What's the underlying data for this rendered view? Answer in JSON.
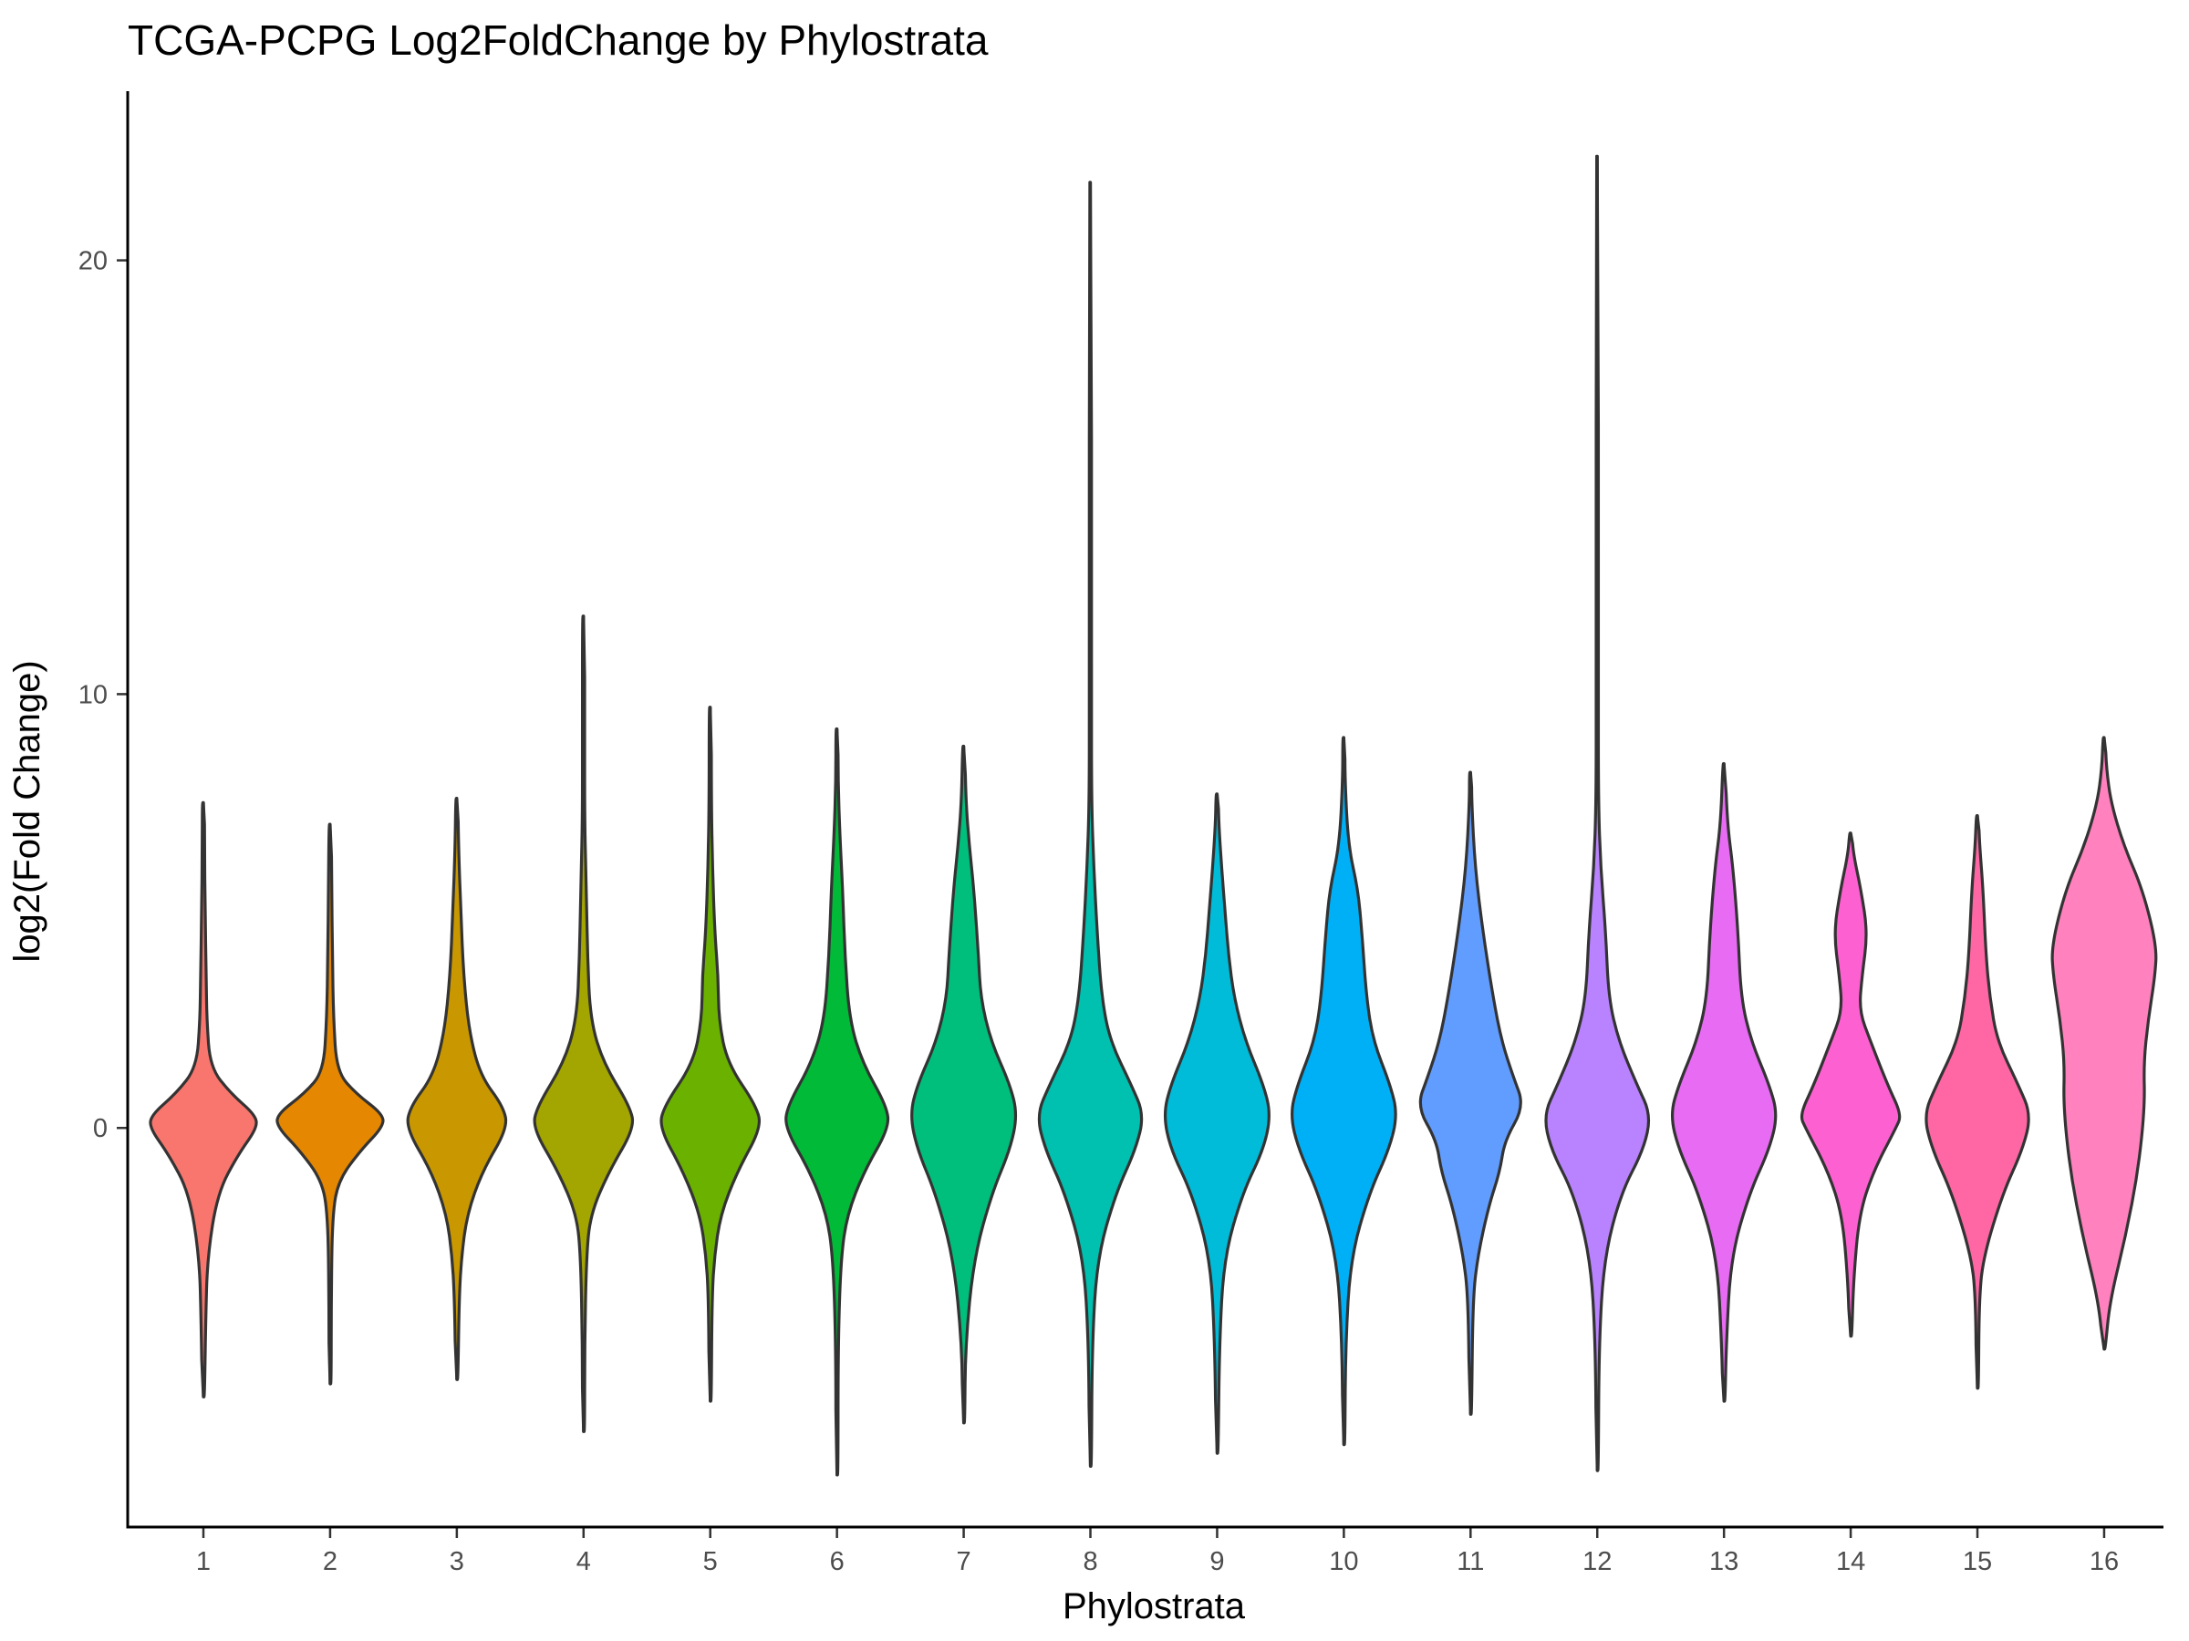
{
  "chart_data": {
    "type": "violin",
    "title": "TCGA-PCPG Log2FoldChange by Phylostrata",
    "xlabel": "Phylostrata",
    "ylabel": "log2(Fold Change)",
    "categories": [
      "1",
      "2",
      "3",
      "4",
      "5",
      "6",
      "7",
      "8",
      "9",
      "10",
      "11",
      "12",
      "13",
      "14",
      "15",
      "16"
    ],
    "yticks": [
      0,
      10,
      20
    ],
    "ylim": [
      -9.2,
      23.9
    ],
    "grid": false,
    "legend": "none",
    "series": [
      {
        "category": "1",
        "color": "#F8766D",
        "min": -6.2,
        "max": 7.5,
        "profile": [
          [
            -6.2,
            0.02
          ],
          [
            -4.5,
            0.04
          ],
          [
            -3,
            0.07
          ],
          [
            -1.5,
            0.25
          ],
          [
            -0.6,
            0.62
          ],
          [
            0,
            0.95
          ],
          [
            0.3,
            0.92
          ],
          [
            0.8,
            0.48
          ],
          [
            1.4,
            0.12
          ],
          [
            2.5,
            0.06
          ],
          [
            3.5,
            0.05
          ],
          [
            5,
            0.03
          ],
          [
            6.5,
            0.02
          ],
          [
            7.5,
            0.01
          ]
        ]
      },
      {
        "category": "2",
        "color": "#E58700",
        "min": -5.9,
        "max": 7.0,
        "profile": [
          [
            -5.9,
            0.01
          ],
          [
            -4,
            0.02
          ],
          [
            -2,
            0.04
          ],
          [
            -1.2,
            0.15
          ],
          [
            -0.5,
            0.55
          ],
          [
            0,
            0.92
          ],
          [
            0.3,
            0.95
          ],
          [
            0.8,
            0.45
          ],
          [
            1.3,
            0.12
          ],
          [
            2.5,
            0.06
          ],
          [
            4,
            0.04
          ],
          [
            5.5,
            0.03
          ],
          [
            7,
            0.01
          ]
        ]
      },
      {
        "category": "3",
        "color": "#C99800",
        "min": -5.8,
        "max": 7.6,
        "profile": [
          [
            -5.8,
            0.02
          ],
          [
            -4,
            0.04
          ],
          [
            -3,
            0.08
          ],
          [
            -2,
            0.18
          ],
          [
            -1,
            0.45
          ],
          [
            0,
            0.9
          ],
          [
            0.5,
            0.82
          ],
          [
            1.2,
            0.42
          ],
          [
            2.2,
            0.22
          ],
          [
            3.5,
            0.12
          ],
          [
            5,
            0.07
          ],
          [
            6.5,
            0.03
          ],
          [
            7.6,
            0.01
          ]
        ]
      },
      {
        "category": "4",
        "color": "#A3A500",
        "min": -7.0,
        "max": 11.8,
        "profile": [
          [
            -7,
            0.01
          ],
          [
            -5,
            0.02
          ],
          [
            -3,
            0.05
          ],
          [
            -2,
            0.12
          ],
          [
            -1,
            0.45
          ],
          [
            0,
            0.9
          ],
          [
            0.5,
            0.82
          ],
          [
            1.5,
            0.35
          ],
          [
            2.5,
            0.12
          ],
          [
            4,
            0.07
          ],
          [
            5.5,
            0.05
          ],
          [
            7,
            0.02
          ],
          [
            9,
            0.01
          ],
          [
            11.8,
            0.01
          ]
        ]
      },
      {
        "category": "5",
        "color": "#6BB100",
        "min": -6.3,
        "max": 9.7,
        "profile": [
          [
            -6.3,
            0.01
          ],
          [
            -4,
            0.03
          ],
          [
            -3,
            0.07
          ],
          [
            -2,
            0.18
          ],
          [
            -1,
            0.48
          ],
          [
            0,
            0.9
          ],
          [
            0.5,
            0.82
          ],
          [
            1.5,
            0.3
          ],
          [
            2.5,
            0.15
          ],
          [
            3.5,
            0.14
          ],
          [
            4.5,
            0.08
          ],
          [
            6,
            0.04
          ],
          [
            7.5,
            0.02
          ],
          [
            9.7,
            0.01
          ]
        ]
      },
      {
        "category": "6",
        "color": "#00BA38",
        "min": -8.0,
        "max": 9.2,
        "profile": [
          [
            -8,
            0.01
          ],
          [
            -5,
            0.02
          ],
          [
            -3,
            0.07
          ],
          [
            -2,
            0.18
          ],
          [
            -1,
            0.48
          ],
          [
            0,
            0.92
          ],
          [
            0.5,
            0.88
          ],
          [
            1.5,
            0.45
          ],
          [
            2.5,
            0.22
          ],
          [
            4,
            0.14
          ],
          [
            5.5,
            0.1
          ],
          [
            6.8,
            0.05
          ],
          [
            8,
            0.02
          ],
          [
            9.2,
            0.01
          ]
        ]
      },
      {
        "category": "7",
        "color": "#00BF7D",
        "min": -6.8,
        "max": 8.8,
        "profile": [
          [
            -6.8,
            0.01
          ],
          [
            -5,
            0.03
          ],
          [
            -3,
            0.18
          ],
          [
            -1.5,
            0.5
          ],
          [
            -0.5,
            0.82
          ],
          [
            0.3,
            0.95
          ],
          [
            1,
            0.82
          ],
          [
            2,
            0.48
          ],
          [
            3,
            0.3
          ],
          [
            4,
            0.26
          ],
          [
            5.5,
            0.18
          ],
          [
            6.5,
            0.1
          ],
          [
            7.5,
            0.04
          ],
          [
            8.8,
            0.01
          ]
        ]
      },
      {
        "category": "8",
        "color": "#00C0AF",
        "min": -7.8,
        "max": 21.8,
        "profile": [
          [
            -7.8,
            0.01
          ],
          [
            -5,
            0.03
          ],
          [
            -3,
            0.12
          ],
          [
            -1.5,
            0.45
          ],
          [
            -0.5,
            0.8
          ],
          [
            0.3,
            0.95
          ],
          [
            1,
            0.72
          ],
          [
            2,
            0.35
          ],
          [
            3,
            0.2
          ],
          [
            4.5,
            0.12
          ],
          [
            6,
            0.06
          ],
          [
            7.5,
            0.02
          ],
          [
            10,
            0.01
          ],
          [
            21.8,
            0.01
          ]
        ]
      },
      {
        "category": "9",
        "color": "#00BCD8",
        "min": -7.5,
        "max": 7.7,
        "profile": [
          [
            -7.5,
            0.01
          ],
          [
            -5,
            0.04
          ],
          [
            -3,
            0.12
          ],
          [
            -1.5,
            0.45
          ],
          [
            -0.5,
            0.82
          ],
          [
            0.3,
            0.95
          ],
          [
            1,
            0.82
          ],
          [
            2,
            0.5
          ],
          [
            3,
            0.3
          ],
          [
            4,
            0.2
          ],
          [
            5,
            0.14
          ],
          [
            6,
            0.08
          ],
          [
            7,
            0.03
          ],
          [
            7.7,
            0.01
          ]
        ]
      },
      {
        "category": "10",
        "color": "#00B0F6",
        "min": -7.3,
        "max": 9.0,
        "profile": [
          [
            -7.3,
            0.01
          ],
          [
            -5,
            0.03
          ],
          [
            -3,
            0.12
          ],
          [
            -1.5,
            0.45
          ],
          [
            -0.5,
            0.8
          ],
          [
            0.3,
            0.95
          ],
          [
            1,
            0.82
          ],
          [
            2,
            0.52
          ],
          [
            3,
            0.4
          ],
          [
            4.5,
            0.32
          ],
          [
            5.5,
            0.25
          ],
          [
            6.5,
            0.08
          ],
          [
            8,
            0.02
          ],
          [
            9,
            0.01
          ]
        ]
      },
      {
        "category": "11",
        "color": "#619CFF",
        "min": -6.6,
        "max": 8.2,
        "profile": [
          [
            -6.6,
            0.01
          ],
          [
            -4,
            0.04
          ],
          [
            -3,
            0.12
          ],
          [
            -1.8,
            0.32
          ],
          [
            -1,
            0.52
          ],
          [
            -0.3,
            0.6
          ],
          [
            0.5,
            0.95
          ],
          [
            1.2,
            0.75
          ],
          [
            2,
            0.55
          ],
          [
            3,
            0.4
          ],
          [
            4.5,
            0.22
          ],
          [
            6,
            0.08
          ],
          [
            7.5,
            0.02
          ],
          [
            8.2,
            0.01
          ]
        ]
      },
      {
        "category": "12",
        "color": "#B983FF",
        "min": -7.9,
        "max": 22.4,
        "profile": [
          [
            -7.9,
            0.01
          ],
          [
            -5,
            0.03
          ],
          [
            -3,
            0.12
          ],
          [
            -1.5,
            0.42
          ],
          [
            -0.5,
            0.82
          ],
          [
            0.3,
            0.95
          ],
          [
            1,
            0.7
          ],
          [
            2,
            0.38
          ],
          [
            3,
            0.2
          ],
          [
            4.5,
            0.15
          ],
          [
            6,
            0.06
          ],
          [
            7.5,
            0.02
          ],
          [
            10,
            0.01
          ],
          [
            22.4,
            0.01
          ]
        ]
      },
      {
        "category": "13",
        "color": "#E76BF3",
        "min": -6.3,
        "max": 8.4,
        "profile": [
          [
            -6.3,
            0.01
          ],
          [
            -5,
            0.04
          ],
          [
            -3,
            0.12
          ],
          [
            -1.5,
            0.45
          ],
          [
            -0.5,
            0.8
          ],
          [
            0.3,
            0.95
          ],
          [
            1,
            0.8
          ],
          [
            2,
            0.48
          ],
          [
            3,
            0.3
          ],
          [
            4.5,
            0.25
          ],
          [
            6,
            0.16
          ],
          [
            7,
            0.06
          ],
          [
            8.4,
            0.01
          ]
        ]
      },
      {
        "category": "14",
        "color": "#FD61D1",
        "min": -4.8,
        "max": 6.8,
        "profile": [
          [
            -4.8,
            0.02
          ],
          [
            -3.5,
            0.05
          ],
          [
            -2,
            0.15
          ],
          [
            -1,
            0.4
          ],
          [
            0,
            0.8
          ],
          [
            0.3,
            0.9
          ],
          [
            1,
            0.65
          ],
          [
            2,
            0.35
          ],
          [
            2.7,
            0.15
          ],
          [
            3.5,
            0.2
          ],
          [
            4.5,
            0.3
          ],
          [
            5.5,
            0.18
          ],
          [
            6.3,
            0.05
          ],
          [
            6.8,
            0.01
          ]
        ]
      },
      {
        "category": "15",
        "color": "#FF67A4",
        "min": -6.0,
        "max": 7.2,
        "profile": [
          [
            -6,
            0.01
          ],
          [
            -4,
            0.03
          ],
          [
            -3,
            0.1
          ],
          [
            -1.5,
            0.45
          ],
          [
            -0.5,
            0.8
          ],
          [
            0.3,
            0.95
          ],
          [
            1,
            0.72
          ],
          [
            2,
            0.35
          ],
          [
            3,
            0.22
          ],
          [
            4,
            0.15
          ],
          [
            5.5,
            0.1
          ],
          [
            6.5,
            0.04
          ],
          [
            7.2,
            0.01
          ]
        ]
      },
      {
        "category": "16",
        "color": "#FF81BE",
        "min": -5.1,
        "max": 9.0,
        "profile": [
          [
            -5.1,
            0.01
          ],
          [
            -4,
            0.1
          ],
          [
            -2.5,
            0.38
          ],
          [
            -1,
            0.6
          ],
          [
            0.5,
            0.72
          ],
          [
            1.5,
            0.7
          ],
          [
            2.5,
            0.78
          ],
          [
            3.5,
            0.9
          ],
          [
            4.2,
            0.93
          ],
          [
            5.5,
            0.68
          ],
          [
            6.5,
            0.35
          ],
          [
            7.5,
            0.12
          ],
          [
            8.3,
            0.04
          ],
          [
            9,
            0.01
          ]
        ]
      }
    ]
  }
}
